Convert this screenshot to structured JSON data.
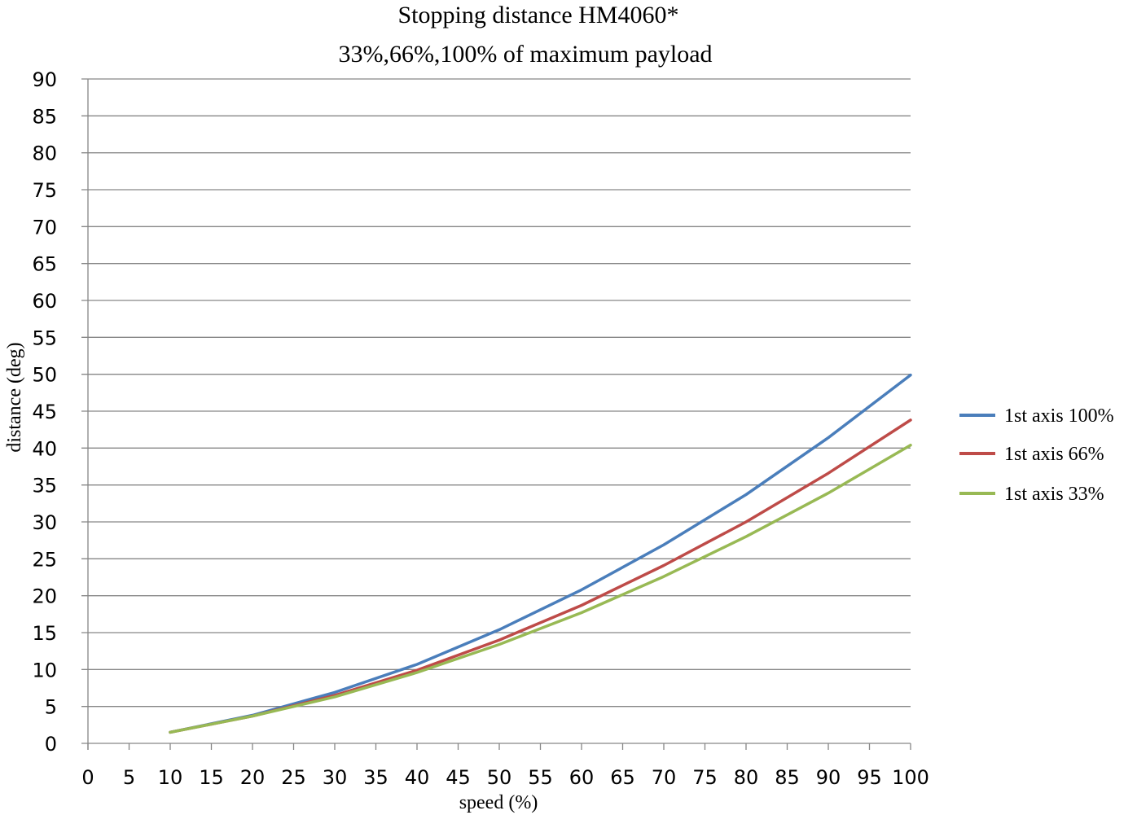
{
  "chart_data": {
    "type": "line",
    "title": "Stopping distance HM4060*",
    "subtitle": "33%,66%,100% of maximum payload",
    "xlabel": "speed  (%)",
    "ylabel": "distance (deg)",
    "xlim": [
      0,
      100
    ],
    "ylim": [
      0,
      90
    ],
    "x_ticks": [
      "0",
      "5",
      "10",
      "15",
      "20",
      "25",
      "30",
      "35",
      "40",
      "45",
      "50",
      "55",
      "60",
      "65",
      "70",
      "75",
      "80",
      "85",
      "90",
      "95",
      "100"
    ],
    "y_ticks": [
      "0",
      "5",
      "10",
      "15",
      "20",
      "25",
      "30",
      "35",
      "40",
      "45",
      "50",
      "55",
      "60",
      "65",
      "70",
      "75",
      "80",
      "85",
      "90"
    ],
    "grid": "horizontal",
    "legend_position": "right",
    "x": [
      10,
      20,
      30,
      40,
      50,
      60,
      70,
      80,
      90,
      100
    ],
    "series": [
      {
        "name": "1st axis 100%",
        "color": "#4a7ebb",
        "values": [
          1.5,
          3.8,
          6.9,
          10.7,
          15.4,
          20.8,
          26.9,
          33.7,
          41.4,
          49.9
        ]
      },
      {
        "name": "1st axis 66%",
        "color": "#be4b48",
        "values": [
          1.5,
          3.7,
          6.5,
          9.9,
          14.0,
          18.7,
          24.1,
          30.0,
          36.6,
          43.8
        ]
      },
      {
        "name": "1st axis 33%",
        "color": "#98b954",
        "values": [
          1.5,
          3.7,
          6.3,
          9.6,
          13.4,
          17.7,
          22.6,
          28.0,
          33.9,
          40.4
        ]
      }
    ]
  }
}
